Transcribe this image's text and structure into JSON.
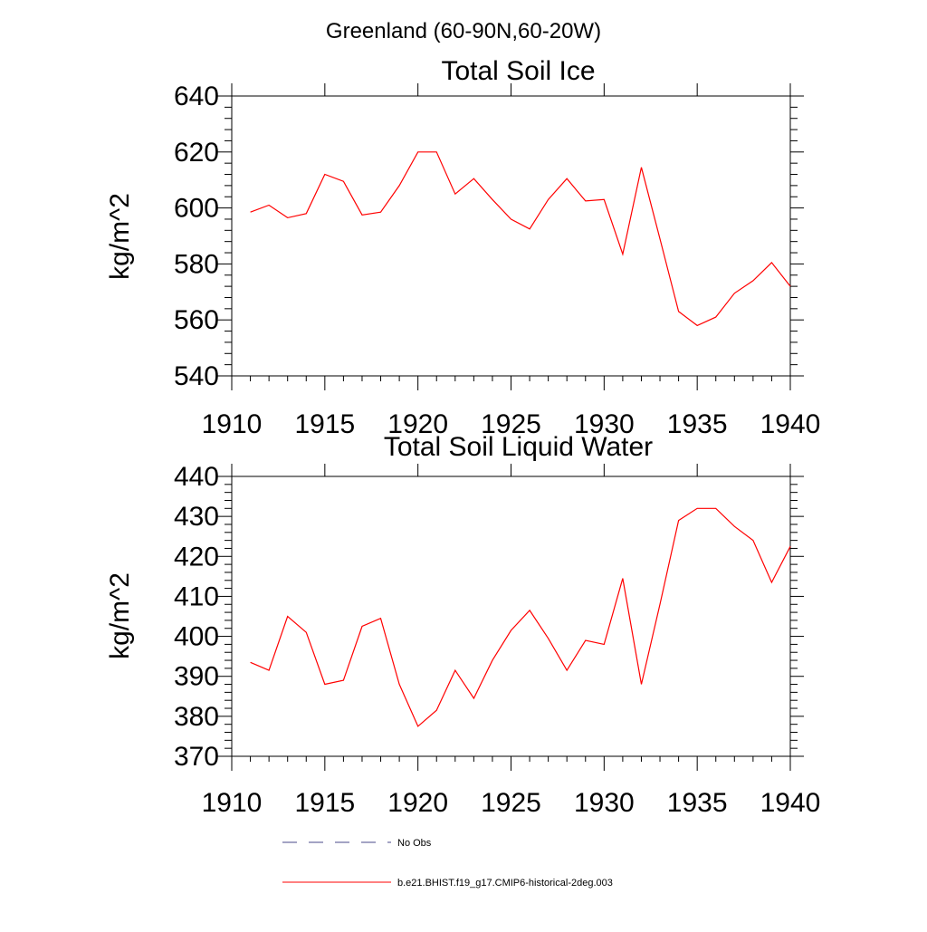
{
  "suptitle": "Greenland (60-90N,60-20W)",
  "legend": {
    "entries": [
      {
        "label": "No Obs",
        "color": "#4a4a8a",
        "style": "dashed"
      },
      {
        "label": "b.e21.BHIST.f19_g17.CMIP6-historical-2deg.003",
        "color": "#ff0000",
        "style": "solid"
      }
    ],
    "placement": "bottom"
  },
  "chart_data": [
    {
      "type": "line",
      "title": "Total Soil Ice",
      "xlabel": "",
      "ylabel": "kg/m^2",
      "xlim": [
        1910,
        1940
      ],
      "ylim": [
        540,
        640
      ],
      "xticks": [
        1910,
        1915,
        1920,
        1925,
        1930,
        1935,
        1940
      ],
      "yticks": [
        540,
        560,
        580,
        600,
        620,
        640
      ],
      "grid": false,
      "series": [
        {
          "name": "b.e21.BHIST.f19_g17.CMIP6-historical-2deg.003",
          "color": "#ff0000",
          "x": [
            1911,
            1912,
            1913,
            1914,
            1915,
            1916,
            1917,
            1918,
            1919,
            1920,
            1921,
            1922,
            1923,
            1924,
            1925,
            1926,
            1927,
            1928,
            1929,
            1930,
            1931,
            1932,
            1933,
            1934,
            1935,
            1936,
            1937,
            1938,
            1939,
            1940
          ],
          "y": [
            598.5,
            601,
            596.5,
            598,
            612,
            609.5,
            597.5,
            598.5,
            608,
            620,
            620,
            605,
            610.5,
            603,
            596,
            592.5,
            603,
            610.5,
            602.5,
            603,
            583.5,
            614.5,
            589,
            563,
            558,
            561,
            569.5,
            574,
            580.5,
            572
          ]
        }
      ]
    },
    {
      "type": "line",
      "title": "Total Soil Liquid Water",
      "xlabel": "",
      "ylabel": "kg/m^2",
      "xlim": [
        1910,
        1940
      ],
      "ylim": [
        370,
        440
      ],
      "xticks": [
        1910,
        1915,
        1920,
        1925,
        1930,
        1935,
        1940
      ],
      "yticks": [
        370,
        380,
        390,
        400,
        410,
        420,
        430,
        440
      ],
      "grid": false,
      "series": [
        {
          "name": "b.e21.BHIST.f19_g17.CMIP6-historical-2deg.003",
          "color": "#ff0000",
          "x": [
            1911,
            1912,
            1913,
            1914,
            1915,
            1916,
            1917,
            1918,
            1919,
            1920,
            1921,
            1922,
            1923,
            1924,
            1925,
            1926,
            1927,
            1928,
            1929,
            1930,
            1931,
            1932,
            1933,
            1934,
            1935,
            1936,
            1937,
            1938,
            1939,
            1940
          ],
          "y": [
            393.5,
            391.5,
            405,
            401,
            388,
            389,
            402.5,
            404.5,
            388,
            377.5,
            381.5,
            391.5,
            384.5,
            394,
            401.5,
            406.5,
            399.5,
            391.5,
            399,
            398,
            414.5,
            388,
            408,
            429,
            432,
            432,
            427.5,
            424,
            413.5,
            422.5
          ]
        }
      ]
    }
  ]
}
